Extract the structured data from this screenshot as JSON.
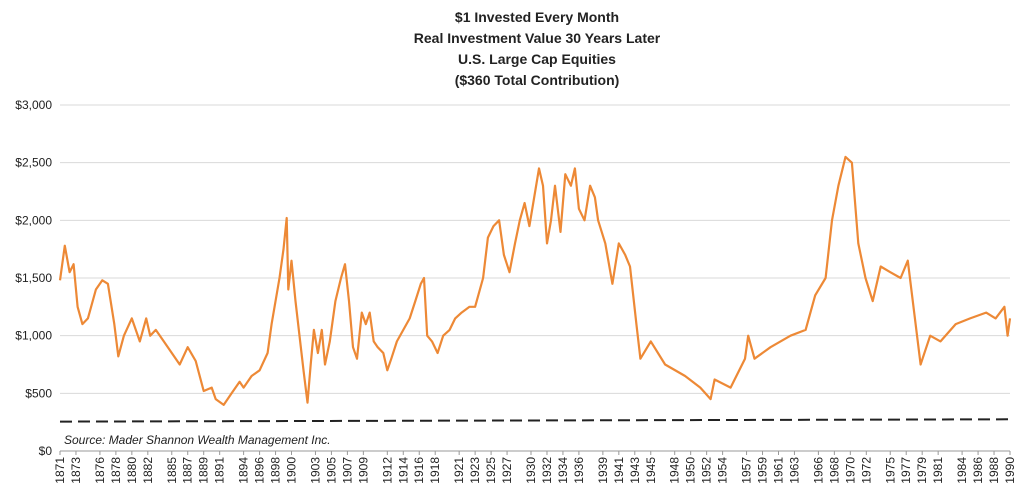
{
  "chart_data": {
    "type": "line",
    "title_lines": [
      "$1 Invested Every Month",
      "Real Investment Value 30 Years Later",
      "U.S. Large Cap Equities",
      "($360 Total Contribution)"
    ],
    "annotation": "Source: Mader Shannon Wealth Management Inc.",
    "x": [
      1871,
      1871.6,
      1872.2,
      1872.7,
      1873.2,
      1873.8,
      1874.5,
      1875.5,
      1876.3,
      1877,
      1877.8,
      1878.3,
      1879,
      1880,
      1881,
      1881.8,
      1882.3,
      1883,
      1884,
      1885,
      1886,
      1887,
      1888,
      1889,
      1890,
      1890.5,
      1891.5,
      1892.5,
      1893.5,
      1894,
      1895,
      1896,
      1897,
      1897.5,
      1898.5,
      1899,
      1899.4,
      1899.6,
      1900,
      1900.5,
      1901,
      1901.5,
      1902,
      1902.4,
      1902.8,
      1903.3,
      1903.8,
      1904.2,
      1904.8,
      1905.5,
      1906.2,
      1906.7,
      1907.2,
      1907.7,
      1908.2,
      1908.8,
      1909.3,
      1909.8,
      1910.3,
      1910.8,
      1911.5,
      1912,
      1912.5,
      1913.2,
      1914,
      1914.8,
      1915.5,
      1916.2,
      1916.6,
      1917,
      1917.6,
      1918.3,
      1919,
      1919.8,
      1920.5,
      1921.3,
      1922.3,
      1923,
      1924,
      1924.6,
      1925.3,
      1926,
      1926.6,
      1927.3,
      1928,
      1928.6,
      1929.2,
      1929.8,
      1930.4,
      1931,
      1931.5,
      1932,
      1932.5,
      1933,
      1933.7,
      1934.3,
      1935,
      1935.5,
      1936,
      1936.7,
      1937.4,
      1938,
      1938.4,
      1939.3,
      1940.2,
      1941,
      1941.8,
      1942.4,
      1943.2,
      1943.7,
      1945,
      1946.8,
      1949.3,
      1951.2,
      1952.5,
      1953,
      1955,
      1956.8,
      1957.2,
      1958,
      1960,
      1962.5,
      1964.4,
      1965.6,
      1966.9,
      1967.7,
      1968.5,
      1969.4,
      1970.2,
      1971,
      1971.9,
      1972.8,
      1973.8,
      1975,
      1976.3,
      1977.2,
      1978,
      1978.8,
      1980,
      1981.3,
      1983.2,
      1985,
      1987,
      1988.2,
      1989.3,
      1989.7,
      1990
    ],
    "series": [
      {
        "color": "#ed8936",
        "values": [
          1480,
          1780,
          1550,
          1620,
          1250,
          1100,
          1150,
          1400,
          1480,
          1450,
          1100,
          820,
          1000,
          1150,
          950,
          1150,
          1000,
          1050,
          950,
          850,
          750,
          900,
          780,
          520,
          550,
          450,
          400,
          500,
          600,
          550,
          650,
          700,
          850,
          1100,
          1500,
          1750,
          2020,
          1400,
          1650,
          1300,
          1000,
          700,
          420,
          750,
          1050,
          850,
          1050,
          750,
          950,
          1300,
          1500,
          1620,
          1300,
          900,
          800,
          1200,
          1100,
          1200,
          950,
          900,
          850,
          700,
          800,
          950,
          1050,
          1150,
          1300,
          1450,
          1500,
          1000,
          950,
          850,
          1000,
          1050,
          1150,
          1200,
          1250,
          1250,
          1500,
          1850,
          1950,
          2000,
          1700,
          1550,
          1800,
          2000,
          2150,
          1950,
          2200,
          2450,
          2300,
          1800,
          2000,
          2300,
          1900,
          2400,
          2300,
          2450,
          2100,
          2000,
          2300,
          2200,
          2000,
          1800,
          1450,
          1800,
          1700,
          1600,
          1100,
          800,
          950,
          750,
          650,
          550,
          450,
          620,
          550,
          800,
          1000,
          800,
          900,
          1000,
          1050,
          1350,
          1500,
          2000,
          2300,
          2550,
          2500,
          1800,
          1500,
          1300,
          1600,
          1550,
          1500,
          1650,
          1200,
          750,
          1000,
          950,
          1100,
          1150,
          1200,
          1150,
          1250,
          1000,
          1150
        ]
      },
      {
        "color": "#222222",
        "dashed": true,
        "x": [
          1871,
          1990
        ],
        "values": [
          255,
          275
        ]
      }
    ],
    "xlim": [
      1871,
      1990
    ],
    "xticks": [
      1871,
      1873,
      1876,
      1878,
      1880,
      1882,
      1885,
      1887,
      1889,
      1891,
      1894,
      1896,
      1898,
      1900,
      1903,
      1905,
      1907,
      1909,
      1912,
      1914,
      1916,
      1918,
      1921,
      1923,
      1925,
      1927,
      1930,
      1932,
      1934,
      1936,
      1939,
      1941,
      1943,
      1945,
      1948,
      1950,
      1952,
      1954,
      1957,
      1959,
      1961,
      1963,
      1966,
      1968,
      1970,
      1972,
      1975,
      1977,
      1979,
      1981,
      1984,
      1986,
      1988,
      1990
    ],
    "ylim": [
      0,
      3000
    ],
    "yticks": [
      {
        "value": 0,
        "label": "$0"
      },
      {
        "value": 500,
        "label": "$500"
      },
      {
        "value": 1000,
        "label": "$1,000"
      },
      {
        "value": 1500,
        "label": "$1,500"
      },
      {
        "value": 2000,
        "label": "$2,000"
      },
      {
        "value": 2500,
        "label": "$2,500"
      },
      {
        "value": 3000,
        "label": "$3,000"
      }
    ],
    "grid": true
  }
}
